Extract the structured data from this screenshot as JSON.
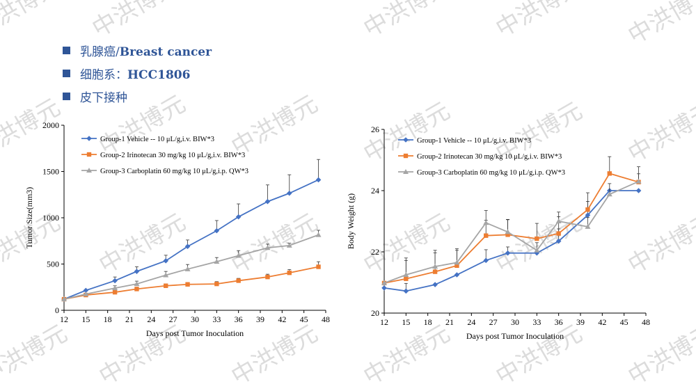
{
  "bullets": {
    "item1_prefix": "乳腺癌/",
    "item1_bold": "Breast cancer",
    "item2_prefix": "细胞系：",
    "item2_bold": "HCC1806",
    "item3": "皮下接种"
  },
  "watermark": {
    "text": "中洪博元",
    "color": "#dcdcdc"
  },
  "colors": {
    "text": "#2f5597",
    "g1": "#4472c4",
    "g2": "#ed7d31",
    "g3": "#a5a5a5"
  },
  "chart_data": [
    {
      "type": "line",
      "xlabel": "Days post Tumor Inoculation",
      "ylabel": "Tumor Size(mm3)",
      "xlim": [
        12,
        48
      ],
      "ylim": [
        0,
        2000
      ],
      "xticks": [
        12,
        15,
        18,
        21,
        24,
        27,
        30,
        33,
        36,
        39,
        42,
        45,
        48
      ],
      "yticks": [
        0,
        500,
        1000,
        1500,
        2000
      ],
      "legend_position": "top-left",
      "series": [
        {
          "name": "Group-1 Vehicle -- 10 μL/g,i.v. BIW*3",
          "marker": "diamond",
          "x": [
            12,
            15,
            19,
            22,
            26,
            29,
            33,
            36,
            40,
            43,
            47
          ],
          "y": [
            120,
            215,
            320,
            420,
            535,
            690,
            860,
            1010,
            1175,
            1265,
            1410
          ],
          "err": [
            0,
            0,
            40,
            50,
            60,
            70,
            110,
            140,
            180,
            200,
            220
          ]
        },
        {
          "name": "Group-2 Irinotecan 30 mg/kg 10 μL/g,i.v. BIW*3",
          "marker": "square",
          "x": [
            12,
            15,
            19,
            22,
            26,
            29,
            33,
            36,
            40,
            43,
            47
          ],
          "y": [
            120,
            165,
            195,
            230,
            265,
            280,
            285,
            320,
            360,
            405,
            470
          ],
          "err": [
            0,
            0,
            0,
            20,
            20,
            20,
            25,
            25,
            30,
            35,
            55
          ]
        },
        {
          "name": "Group-3 Carboplatin 60 mg/kg 10 μL/g,i.p. QW*3",
          "marker": "triangle",
          "x": [
            12,
            15,
            19,
            22,
            26,
            29,
            33,
            36,
            40,
            43,
            47
          ],
          "y": [
            120,
            175,
            240,
            285,
            380,
            445,
            525,
            590,
            675,
            700,
            815
          ],
          "err": [
            0,
            0,
            25,
            30,
            40,
            50,
            45,
            55,
            40,
            25,
            50
          ]
        }
      ]
    },
    {
      "type": "line",
      "xlabel": "Days post Tumor Inoculation",
      "ylabel": "Body Weight (g)",
      "xlim": [
        12,
        48
      ],
      "ylim": [
        20,
        26
      ],
      "xticks": [
        12,
        15,
        18,
        21,
        24,
        27,
        30,
        33,
        36,
        39,
        42,
        45,
        48
      ],
      "yticks": [
        20,
        22,
        24,
        26
      ],
      "legend_position": "top-left",
      "series": [
        {
          "name": "Group-1 Vehicle -- 10 μL/g,i.v. BIW*3",
          "marker": "diamond",
          "x": [
            12,
            15,
            19,
            22,
            26,
            29,
            33,
            36,
            40,
            43,
            47
          ],
          "y": [
            20.82,
            20.72,
            20.93,
            21.25,
            21.72,
            21.96,
            21.96,
            22.35,
            23.2,
            24.0,
            24.0
          ],
          "err": [
            0,
            0.25,
            0,
            0,
            0.35,
            0.2,
            0,
            0.4,
            0.45,
            0,
            0
          ]
        },
        {
          "name": "Group-2 Irinotecan 30 mg/kg 10 μL/g,i.v. BIW*3",
          "marker": "square",
          "x": [
            12,
            15,
            19,
            22,
            26,
            29,
            33,
            36,
            40,
            43,
            47
          ],
          "y": [
            20.98,
            21.12,
            21.35,
            21.55,
            22.53,
            22.56,
            22.43,
            22.6,
            23.38,
            24.56,
            24.28
          ],
          "err": [
            0,
            0.6,
            0.7,
            0.5,
            0.5,
            0.5,
            0.5,
            0.55,
            0.55,
            0.55,
            0.5
          ]
        },
        {
          "name": "Group-3 Carboplatin 60 mg/kg 10 μL/g,i.p. QW*3",
          "marker": "triangle",
          "x": [
            12,
            15,
            19,
            22,
            26,
            29,
            33,
            36,
            40,
            43,
            47
          ],
          "y": [
            20.98,
            21.25,
            21.52,
            21.65,
            22.95,
            22.65,
            22.05,
            23.0,
            22.82,
            23.88,
            24.3
          ],
          "err": [
            0,
            0.55,
            0.45,
            0.45,
            0.4,
            0.4,
            0.25,
            0.3,
            0.3,
            0.35,
            0.25
          ]
        }
      ]
    }
  ]
}
